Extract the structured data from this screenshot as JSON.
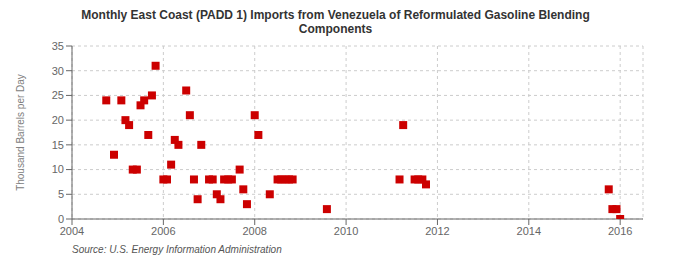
{
  "chart_data": {
    "type": "scatter",
    "title": "Monthly East Coast (PADD 1) Imports from Venezuela of Reformulated Gasoline Blending\nComponents",
    "ylabel": "Thousand Barrels per Day",
    "annotations": [
      "Source: U.S. Energy Information Administration"
    ],
    "color": "#cc0000",
    "marker": "square",
    "grid": true,
    "xlim": [
      2004,
      2016.5
    ],
    "ylim": [
      0,
      35
    ],
    "xticks": [
      2004,
      2006,
      2008,
      2010,
      2012,
      2014,
      2016
    ],
    "yticks": [
      0,
      5,
      10,
      15,
      20,
      25,
      30,
      35
    ],
    "x": [
      2004.75,
      2004.92,
      2005.08,
      2005.17,
      2005.25,
      2005.33,
      2005.42,
      2005.5,
      2005.58,
      2005.67,
      2005.75,
      2005.83,
      2006.0,
      2006.08,
      2006.17,
      2006.25,
      2006.33,
      2006.5,
      2006.58,
      2006.67,
      2006.75,
      2006.83,
      2007.0,
      2007.08,
      2007.17,
      2007.25,
      2007.33,
      2007.42,
      2007.5,
      2007.67,
      2007.75,
      2007.83,
      2008.0,
      2008.08,
      2008.33,
      2008.5,
      2008.58,
      2008.67,
      2008.75,
      2008.83,
      2009.58,
      2011.17,
      2011.25,
      2011.5,
      2011.58,
      2011.67,
      2011.75,
      2015.75,
      2015.83,
      2015.92,
      2016.0
    ],
    "values": [
      24,
      13,
      24,
      20,
      19,
      10,
      10,
      23,
      24,
      17,
      25,
      31,
      8,
      8,
      11,
      16,
      15,
      26,
      21,
      8,
      4,
      15,
      8,
      8,
      5,
      4,
      8,
      8,
      8,
      10,
      6,
      3,
      21,
      17,
      5,
      8,
      8,
      8,
      8,
      8,
      2,
      8,
      19,
      8,
      8,
      8,
      7,
      6,
      2,
      2,
      0
    ]
  }
}
